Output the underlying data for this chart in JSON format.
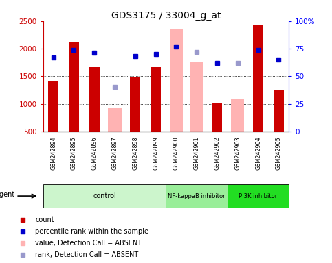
{
  "title": "GDS3175 / 33004_g_at",
  "samples": [
    "GSM242894",
    "GSM242895",
    "GSM242896",
    "GSM242897",
    "GSM242898",
    "GSM242899",
    "GSM242900",
    "GSM242901",
    "GSM242902",
    "GSM242903",
    "GSM242904",
    "GSM242905"
  ],
  "red_bars": [
    1420,
    2120,
    1670,
    null,
    1490,
    1670,
    null,
    null,
    1010,
    null,
    2430,
    1240
  ],
  "pink_bars": [
    null,
    null,
    null,
    930,
    null,
    null,
    2360,
    1750,
    null,
    1100,
    null,
    null
  ],
  "blue_squares_pct": [
    67,
    74,
    71,
    null,
    68,
    70,
    77,
    null,
    62,
    null,
    74,
    65
  ],
  "lavender_squares_pct": [
    null,
    null,
    null,
    40,
    null,
    null,
    null,
    72,
    null,
    62,
    null,
    null
  ],
  "groups": [
    {
      "label": "control",
      "start": 0,
      "end": 6,
      "color": "#ccf5cc"
    },
    {
      "label": "NF-kappaB inhibitor",
      "start": 6,
      "end": 9,
      "color": "#99ee99"
    },
    {
      "label": "PI3K inhibitor",
      "start": 9,
      "end": 12,
      "color": "#22dd22"
    }
  ],
  "ylim_left": [
    500,
    2500
  ],
  "ylim_right": [
    0,
    100
  ],
  "yticks_left": [
    500,
    1000,
    1500,
    2000,
    2500
  ],
  "yticks_right": [
    0,
    25,
    50,
    75,
    100
  ],
  "red_color": "#cc0000",
  "pink_color": "#ffb3b3",
  "blue_color": "#0000cc",
  "lavender_color": "#9999cc",
  "bg_color": "#ffffff",
  "bar_width": 0.5,
  "pink_bar_width": 0.65
}
